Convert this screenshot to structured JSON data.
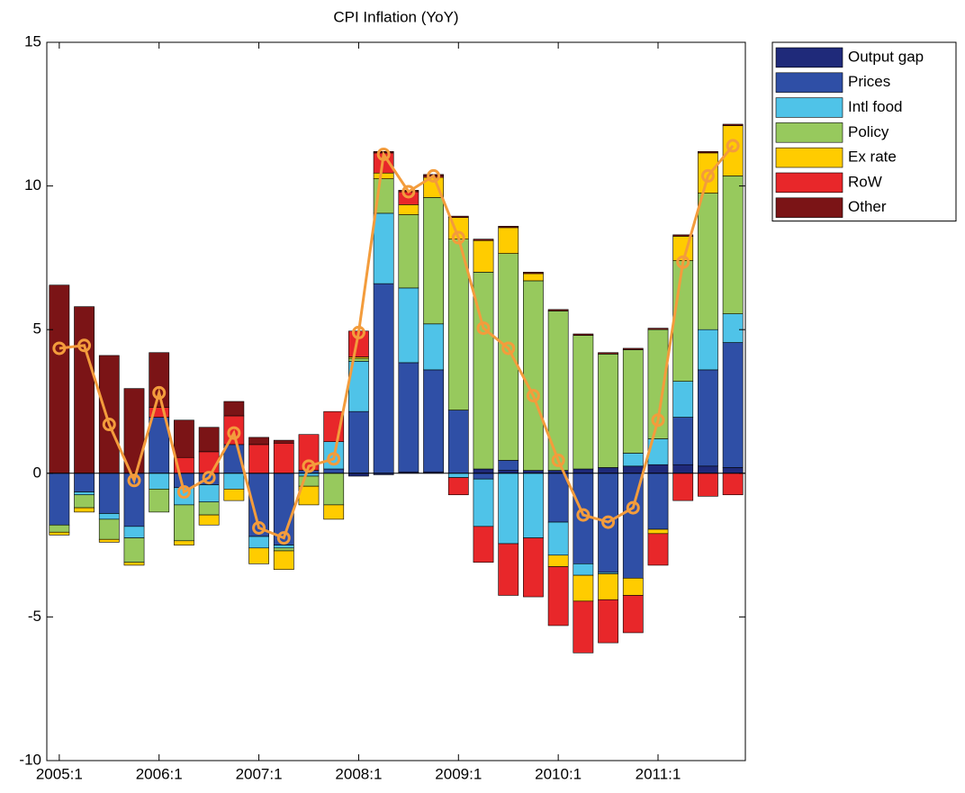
{
  "chart_data": {
    "type": "bar",
    "stacked": true,
    "title": "CPI Inflation (YoY)",
    "categories": [
      "2005:1",
      null,
      null,
      null,
      "2006:1",
      null,
      null,
      null,
      "2007:1",
      null,
      null,
      null,
      "2008:1",
      null,
      null,
      null,
      "2009:1",
      null,
      null,
      null,
      "2010:1",
      null,
      null,
      null,
      "2011:1",
      null,
      null,
      null
    ],
    "series": [
      {
        "name": "Output gap",
        "color": "#1f2a7a",
        "values": [
          0,
          0,
          0,
          0,
          0,
          0,
          0,
          0,
          0,
          0,
          0,
          0,
          -0.1,
          -0.05,
          0.05,
          0.05,
          0,
          0.15,
          0.1,
          0.1,
          0.1,
          0.15,
          0.2,
          0.25,
          0.3,
          0.3,
          0.25,
          0.2
        ]
      },
      {
        "name": "Prices",
        "color": "#2f4fa6",
        "values": [
          -1.8,
          -0.65,
          -1.4,
          -1.85,
          1.95,
          -0.5,
          -0.4,
          1.0,
          -2.2,
          -2.5,
          0.1,
          0.15,
          2.15,
          6.6,
          3.8,
          3.55,
          2.2,
          -0.2,
          0.35,
          0,
          -1.7,
          -3.15,
          -3.45,
          -3.65,
          -1.95,
          1.65,
          3.35,
          4.35
        ]
      },
      {
        "name": "Intl food",
        "color": "#4fc3e8",
        "values": [
          0,
          -0.1,
          -0.2,
          -0.4,
          -0.55,
          -0.6,
          -0.6,
          -0.55,
          -0.4,
          -0.1,
          -0.1,
          0.95,
          1.75,
          2.45,
          2.6,
          1.6,
          -0.15,
          -1.65,
          -2.45,
          -2.25,
          -1.15,
          -0.4,
          -0.05,
          0.45,
          0.9,
          1.25,
          1.4,
          1.0
        ]
      },
      {
        "name": "Policy",
        "color": "#97c95d",
        "values": [
          -0.25,
          -0.45,
          -0.7,
          -0.85,
          -0.8,
          -1.25,
          -0.45,
          0,
          0,
          -0.1,
          -0.35,
          -1.1,
          0.1,
          1.2,
          2.55,
          4.4,
          5.95,
          6.85,
          7.2,
          6.6,
          5.55,
          4.65,
          3.95,
          3.6,
          3.8,
          4.2,
          4.75,
          4.8
        ]
      },
      {
        "name": "Ex rate",
        "color": "#ffcc00",
        "values": [
          -0.1,
          -0.15,
          -0.1,
          -0.1,
          0,
          -0.15,
          -0.35,
          -0.4,
          -0.55,
          -0.65,
          -0.65,
          -0.5,
          0.05,
          0.2,
          0.35,
          0.7,
          0.75,
          1.1,
          0.9,
          0.25,
          -0.4,
          -0.9,
          -0.9,
          -0.6,
          -0.15,
          0.85,
          1.4,
          1.75
        ]
      },
      {
        "name": "RoW",
        "color": "#e8272a",
        "values": [
          0,
          0,
          0,
          0,
          0.35,
          0.55,
          0.75,
          1.0,
          1.0,
          1.05,
          1.25,
          1.05,
          0.9,
          0.7,
          0.45,
          0.05,
          -0.6,
          -1.25,
          -1.8,
          -2.05,
          -2.05,
          -1.8,
          -1.5,
          -1.3,
          -1.1,
          -0.95,
          -0.8,
          -0.75
        ]
      },
      {
        "name": "Other",
        "color": "#7b1416",
        "values": [
          6.55,
          5.8,
          4.1,
          2.95,
          1.9,
          1.3,
          0.85,
          0.5,
          0.25,
          0.1,
          0,
          0,
          0,
          0.05,
          0.05,
          0.05,
          0.05,
          0.05,
          0.05,
          0.05,
          0.05,
          0.05,
          0.05,
          0.05,
          0.05,
          0.05,
          0.05,
          0.05
        ]
      }
    ],
    "line": {
      "color": "#f39c3c",
      "values": [
        4.35,
        4.45,
        1.7,
        -0.25,
        2.8,
        -0.65,
        -0.15,
        1.4,
        -1.9,
        -2.25,
        0.25,
        0.5,
        4.9,
        11.1,
        9.8,
        10.35,
        8.2,
        5.05,
        4.35,
        2.7,
        0.45,
        -1.45,
        -1.7,
        -1.2,
        1.85,
        7.35,
        10.35,
        11.4
      ]
    },
    "ylim": [
      -10,
      15
    ],
    "yticks": [
      -10,
      -5,
      0,
      5,
      10,
      15
    ],
    "legend": "outside-upper-right"
  }
}
